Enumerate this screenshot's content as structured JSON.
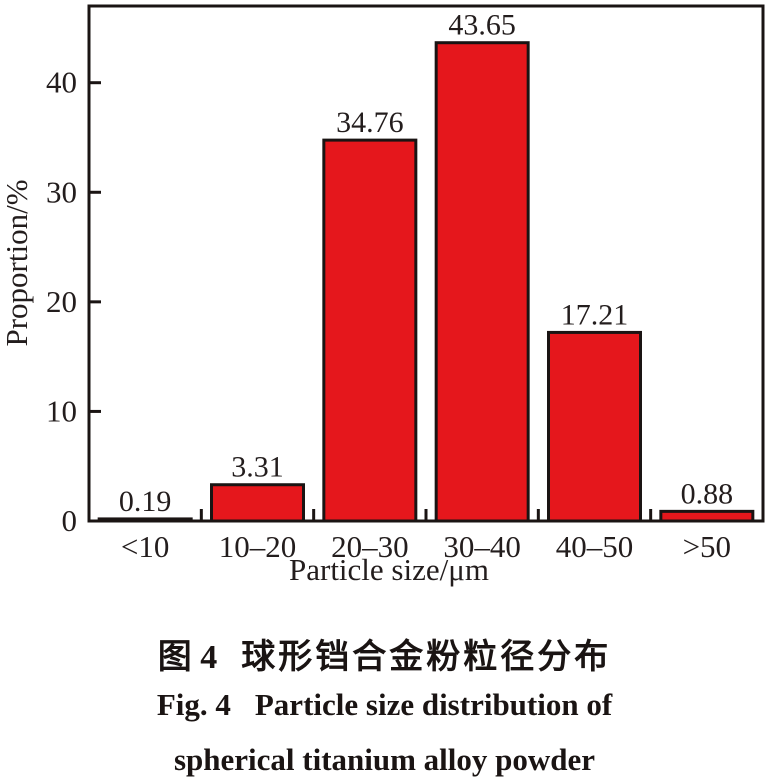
{
  "chart_data": {
    "type": "bar",
    "title": "",
    "categories": [
      "<10",
      "10–20",
      "20–30",
      "30–40",
      "40–50",
      ">50"
    ],
    "values": [
      0.19,
      3.31,
      34.76,
      43.65,
      17.21,
      0.88
    ],
    "value_labels": [
      "0.19",
      "3.31",
      "34.76",
      "43.65",
      "17.21",
      "0.88"
    ],
    "xlabel": "Particle size/μm",
    "ylabel": "Proportion/%",
    "yticks": [
      0,
      10,
      20,
      30,
      40
    ],
    "ylim": [
      0,
      47
    ],
    "grid": false,
    "legend": false,
    "colors": {
      "bar_fill": "#e5171c",
      "bar_edge": "#1a1413",
      "axis": "#1a1413",
      "text": "#231d1d"
    }
  },
  "caption": {
    "zh_label": "图 4",
    "zh_text": "球形铛合金粉粒径分布",
    "en_label": "Fig. 4",
    "en_line1": "Particle size distribution of",
    "en_line2": "spherical titanium alloy powder"
  }
}
